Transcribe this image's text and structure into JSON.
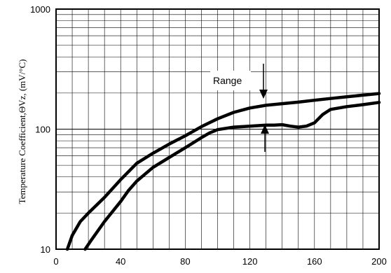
{
  "chart_data": {
    "type": "line",
    "title": "",
    "xlabel": "",
    "ylabel": "Temperature Coefficient,ΘVz,  (mV/°C)",
    "xlim": [
      0,
      200
    ],
    "ylim": [
      10,
      1000
    ],
    "yscale": "log",
    "grid": true,
    "x_ticks": [
      "0",
      "40",
      "80",
      "120",
      "160",
      "200"
    ],
    "y_ticks": [
      "10",
      "100",
      "1000"
    ],
    "annotation": "Range",
    "series": [
      {
        "points": [
          [
            7,
            10
          ],
          [
            10,
            13
          ],
          [
            15,
            17
          ],
          [
            20,
            20
          ],
          [
            30,
            27
          ],
          [
            40,
            38
          ],
          [
            50,
            52
          ],
          [
            60,
            63
          ],
          [
            70,
            75
          ],
          [
            80,
            88
          ],
          [
            90,
            105
          ],
          [
            100,
            122
          ],
          [
            110,
            138
          ],
          [
            120,
            150
          ],
          [
            130,
            158
          ],
          [
            140,
            163
          ],
          [
            150,
            168
          ],
          [
            160,
            174
          ],
          [
            170,
            180
          ],
          [
            180,
            186
          ],
          [
            190,
            192
          ],
          [
            200,
            198
          ]
        ]
      },
      {
        "points": [
          [
            18,
            10
          ],
          [
            22,
            12
          ],
          [
            30,
            17
          ],
          [
            40,
            25
          ],
          [
            45,
            31
          ],
          [
            50,
            37
          ],
          [
            60,
            48
          ],
          [
            70,
            58
          ],
          [
            80,
            70
          ],
          [
            90,
            85
          ],
          [
            95,
            93
          ],
          [
            100,
            99
          ],
          [
            110,
            104
          ],
          [
            120,
            106
          ],
          [
            130,
            108
          ],
          [
            135,
            108
          ],
          [
            140,
            109
          ],
          [
            145,
            106
          ],
          [
            150,
            104
          ],
          [
            155,
            106
          ],
          [
            160,
            113
          ],
          [
            165,
            132
          ],
          [
            170,
            146
          ],
          [
            180,
            154
          ],
          [
            190,
            160
          ],
          [
            200,
            167
          ]
        ]
      }
    ]
  }
}
